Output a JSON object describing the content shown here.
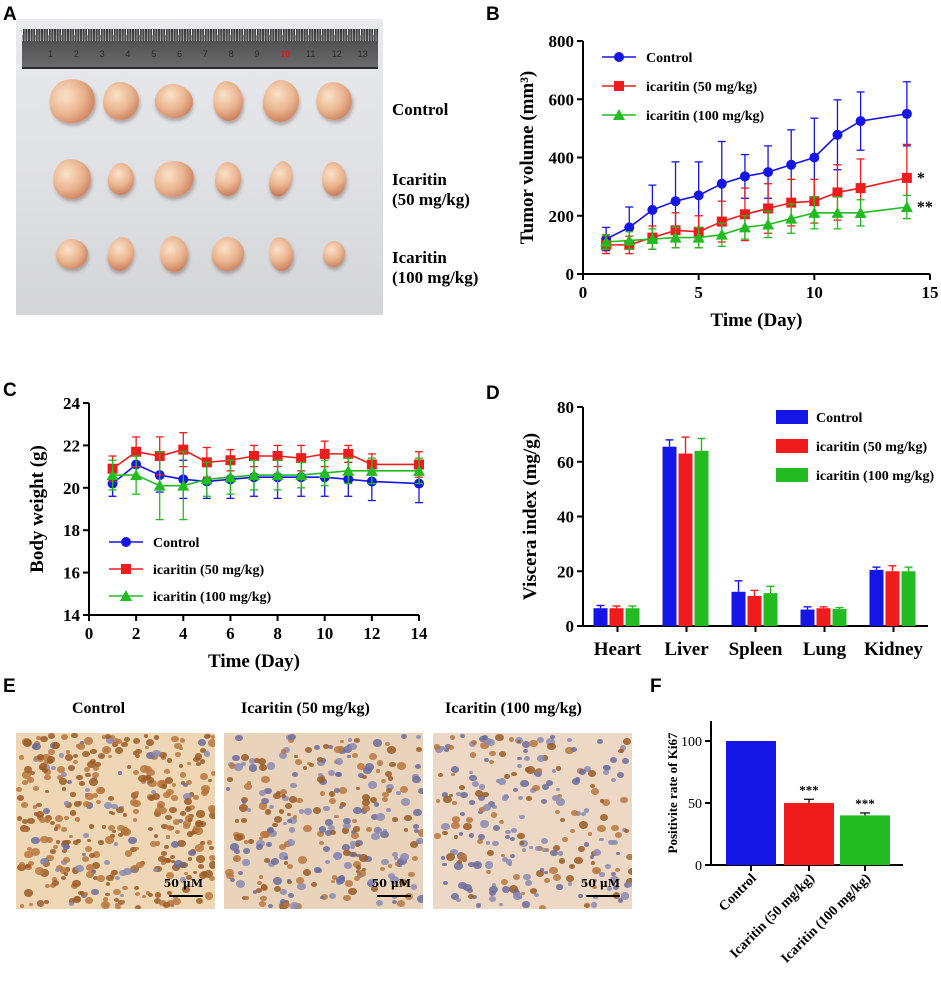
{
  "panels": {
    "A": "A",
    "B": "B",
    "C": "C",
    "D": "D",
    "E": "E",
    "F": "F"
  },
  "panelA": {
    "ruler_numbers": [
      "1",
      "2",
      "3",
      "4",
      "5",
      "6",
      "7",
      "8",
      "9",
      "10",
      "11",
      "12",
      "13"
    ],
    "ruler_highlight": "10",
    "row_labels": [
      {
        "line1": "Control",
        "line2": ""
      },
      {
        "line1": "Icaritin",
        "line2": "(50 mg/kg)"
      },
      {
        "line1": "Icaritin",
        "line2": "(100 mg/kg)"
      }
    ]
  },
  "panelE": {
    "titles": [
      "Control",
      "Icaritin (50 mg/kg)",
      "Icaritin (100 mg/kg)"
    ],
    "scale_label": "50 μM"
  },
  "colors": {
    "control": "#1515e6",
    "low": "#ee1c1c",
    "high": "#22bb22"
  },
  "chart_data": [
    {
      "id": "B",
      "type": "line",
      "xlabel": "Time (Day)",
      "ylabel": "Tumor volume (mm³)",
      "xlim": [
        0,
        15
      ],
      "ylim": [
        0,
        800
      ],
      "xticks": [
        0,
        5,
        10,
        15
      ],
      "yticks": [
        0,
        200,
        400,
        600,
        800
      ],
      "x": [
        1,
        2,
        3,
        4,
        5,
        6,
        7,
        8,
        9,
        10,
        11,
        12,
        14
      ],
      "series": [
        {
          "name": "Control",
          "marker": "circle",
          "values": [
            120,
            160,
            220,
            250,
            270,
            310,
            335,
            350,
            375,
            400,
            478,
            525,
            550
          ],
          "err": [
            40,
            70,
            85,
            135,
            115,
            145,
            75,
            90,
            120,
            135,
            120,
            100,
            110
          ]
        },
        {
          "name": "icaritin (50 mg/kg)",
          "marker": "square",
          "values": [
            100,
            100,
            125,
            150,
            145,
            180,
            205,
            225,
            245,
            250,
            280,
            295,
            330
          ],
          "err": [
            30,
            30,
            40,
            60,
            55,
            70,
            90,
            85,
            80,
            75,
            95,
            100,
            115
          ]
        },
        {
          "name": "icaritin (100 mg/kg)",
          "marker": "triangle",
          "values": [
            110,
            115,
            120,
            125,
            125,
            135,
            160,
            170,
            190,
            210,
            210,
            210,
            230
          ],
          "err": [
            25,
            30,
            35,
            35,
            35,
            40,
            40,
            45,
            50,
            55,
            55,
            45,
            40
          ]
        }
      ],
      "annotations": [
        {
          "text": "*",
          "x": 14,
          "y": 330
        },
        {
          "text": "**",
          "x": 14,
          "y": 230
        }
      ]
    },
    {
      "id": "C",
      "type": "line",
      "xlabel": "Time (Day)",
      "ylabel": "Body weight (g)",
      "xlim": [
        0,
        14
      ],
      "ylim": [
        14,
        24
      ],
      "xticks": [
        0,
        2,
        4,
        6,
        8,
        10,
        12,
        14
      ],
      "yticks": [
        14,
        16,
        18,
        20,
        22,
        24
      ],
      "x": [
        1,
        2,
        3,
        4,
        5,
        6,
        7,
        8,
        9,
        10,
        11,
        12,
        14
      ],
      "series": [
        {
          "name": "Control",
          "marker": "circle",
          "values": [
            20.2,
            21.1,
            20.6,
            20.4,
            20.3,
            20.4,
            20.5,
            20.5,
            20.5,
            20.5,
            20.4,
            20.3,
            20.2
          ],
          "err": [
            0.6,
            0.6,
            0.8,
            0.9,
            0.8,
            0.9,
            0.9,
            1.0,
            0.9,
            0.9,
            0.8,
            0.9,
            0.9
          ]
        },
        {
          "name": "icaritin (50 mg/kg)",
          "marker": "square",
          "values": [
            20.9,
            21.7,
            21.5,
            21.8,
            21.2,
            21.3,
            21.5,
            21.5,
            21.4,
            21.6,
            21.6,
            21.1,
            21.1
          ],
          "err": [
            0.6,
            0.7,
            0.9,
            0.8,
            0.7,
            0.5,
            0.5,
            0.5,
            0.6,
            0.6,
            0.4,
            0.5,
            0.6
          ]
        },
        {
          "name": "icaritin (100 mg/kg)",
          "marker": "triangle",
          "values": [
            20.6,
            20.6,
            20.1,
            20.1,
            20.4,
            20.5,
            20.6,
            20.6,
            20.6,
            20.7,
            20.8,
            20.8,
            20.8
          ],
          "err": [
            0.7,
            0.9,
            1.6,
            1.6,
            0.8,
            0.8,
            0.7,
            0.7,
            0.6,
            0.6,
            0.6,
            0.6,
            0.6
          ]
        }
      ]
    },
    {
      "id": "D",
      "type": "bar",
      "xlabel": "",
      "ylabel": "Viscera index (mg/g)",
      "ylim": [
        0,
        80
      ],
      "yticks": [
        0,
        20,
        40,
        60,
        80
      ],
      "categories": [
        "Heart",
        "Liver",
        "Spleen",
        "Lung",
        "Kidney"
      ],
      "series": [
        {
          "name": "Control",
          "values": [
            6.5,
            65.5,
            12.5,
            6.0,
            20.5
          ],
          "err": [
            1.0,
            2.5,
            4.0,
            1.0,
            1.0
          ]
        },
        {
          "name": "icaritin (50 mg/kg)",
          "values": [
            6.5,
            63.0,
            11.0,
            6.5,
            20.0
          ],
          "err": [
            0.8,
            6.0,
            2.0,
            0.5,
            2.0
          ]
        },
        {
          "name": "icaritin (100 mg/kg)",
          "values": [
            6.5,
            64.0,
            12.0,
            6.2,
            20.0
          ],
          "err": [
            0.8,
            4.5,
            2.5,
            0.5,
            1.5
          ]
        }
      ]
    },
    {
      "id": "F",
      "type": "bar",
      "xlabel": "",
      "ylabel": "Positivite rate of Ki67",
      "ylim": [
        0,
        100
      ],
      "yticks": [
        0,
        50,
        100
      ],
      "categories": [
        "Control",
        "Icaritin (50 mg/kg)",
        "Icaritin (100 mg/kg)"
      ],
      "values": [
        100,
        50,
        40
      ],
      "err": [
        0,
        3,
        2
      ],
      "annotations": [
        "",
        "***",
        "***"
      ]
    }
  ]
}
